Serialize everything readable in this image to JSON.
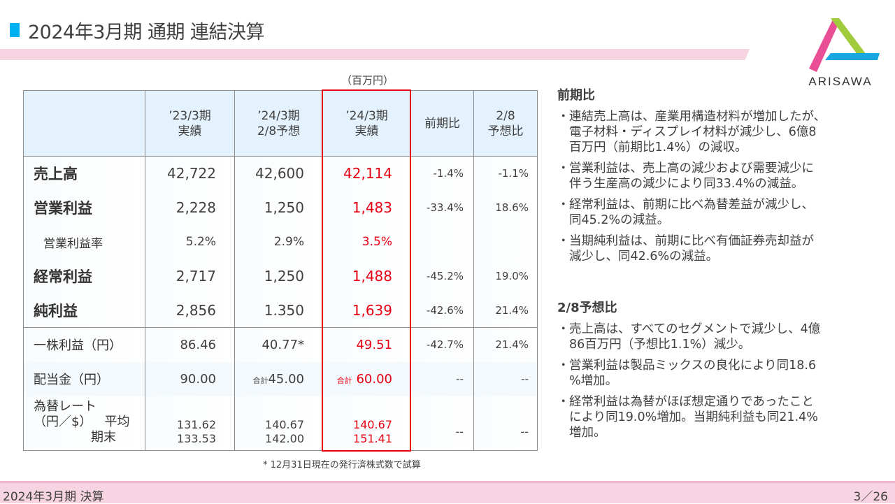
{
  "header": {
    "title": "2024年3月期 通期 連結決算",
    "accent": "#00b0f0",
    "stripe_color": "#f7d4e2"
  },
  "logo": {
    "text": "ARISAWA",
    "colors": [
      "#e94f95",
      "#9fcb3c",
      "#1aa6e0"
    ]
  },
  "table": {
    "unit": "（百万円）",
    "headers": [
      [
        "",
        ""
      ],
      [
        "’23/3期",
        "実績"
      ],
      [
        "’24/3期",
        "2/8予想"
      ],
      [
        "’24/3期",
        "実績"
      ],
      [
        "前期比",
        ""
      ],
      [
        "2/8",
        "予想比"
      ]
    ],
    "rows": [
      {
        "label": "売上高",
        "v": [
          "42,722",
          "42,600",
          "42,114",
          "-1.4%",
          "-1.1%"
        ]
      },
      {
        "label": "営業利益",
        "v": [
          "2,228",
          "1,250",
          "1,483",
          "-33.4%",
          "18.6%"
        ]
      },
      {
        "label": "営業利益率",
        "v": [
          "5.2%",
          "2.9%",
          "3.5%",
          "",
          ""
        ]
      },
      {
        "label": "経常利益",
        "v": [
          "2,717",
          "1,250",
          "1,488",
          "-45.2%",
          "19.0%"
        ]
      },
      {
        "label": "純利益",
        "v": [
          "2,856",
          "1.350",
          "1,639",
          "-42.6%",
          "21.4%"
        ]
      },
      {
        "label": "一株利益（円）",
        "v": [
          "86.46",
          "40.77*",
          "49.51",
          "-42.7%",
          "21.4%"
        ]
      },
      {
        "label": "配当金（円）",
        "prefix": "合計",
        "v": [
          "90.00",
          "45.00",
          "60.00",
          "--",
          "--"
        ]
      }
    ],
    "fx": {
      "label": "為替レート",
      "label2": "（円／$）",
      "avg": "平均",
      "end": "期末",
      "avg_v": [
        "131.62",
        "140.67",
        "140.67"
      ],
      "end_v": [
        "133.53",
        "142.00",
        "151.41"
      ],
      "c4": "--",
      "c5": "--"
    },
    "highlight_color": "#e60012",
    "footnote": "* 12月31日現在の発行済株式数で試算"
  },
  "side": {
    "s1": {
      "heading": "前期比",
      "bullets": [
        [
          "連結売上高は、産業用構造材料が増加したが、",
          "電子材料・ディスプレイ材料が減少し、6億8",
          "百万円（前期比1.4%）の減収。"
        ],
        [
          "営業利益は、売上高の減少および需要減少に",
          "伴う生産高の減少により同33.4%の減益。"
        ],
        [
          "経常利益は、前期に比べ為替差益が減少し、",
          "同45.2%の減益。"
        ],
        [
          "当期純利益は、前期に比べ有価証券売却益が",
          "減少し、同42.6%の減益。"
        ]
      ]
    },
    "s2": {
      "heading": "2/8予想比",
      "bullets": [
        [
          "売上高は、すべてのセグメントで減少し、4億",
          "86百万円（予想比1.1%）減少。"
        ],
        [
          "営業利益は製品ミックスの良化により同18.6",
          "%増加。"
        ],
        [
          "経常利益は為替がほぼ想定通りであったこと",
          "により同19.0%増加。当期純利益も同21.4%",
          "増加。"
        ]
      ]
    },
    "bullet": "・"
  },
  "footer": {
    "left": "2024年3月期 決算",
    "page": "3／26"
  }
}
